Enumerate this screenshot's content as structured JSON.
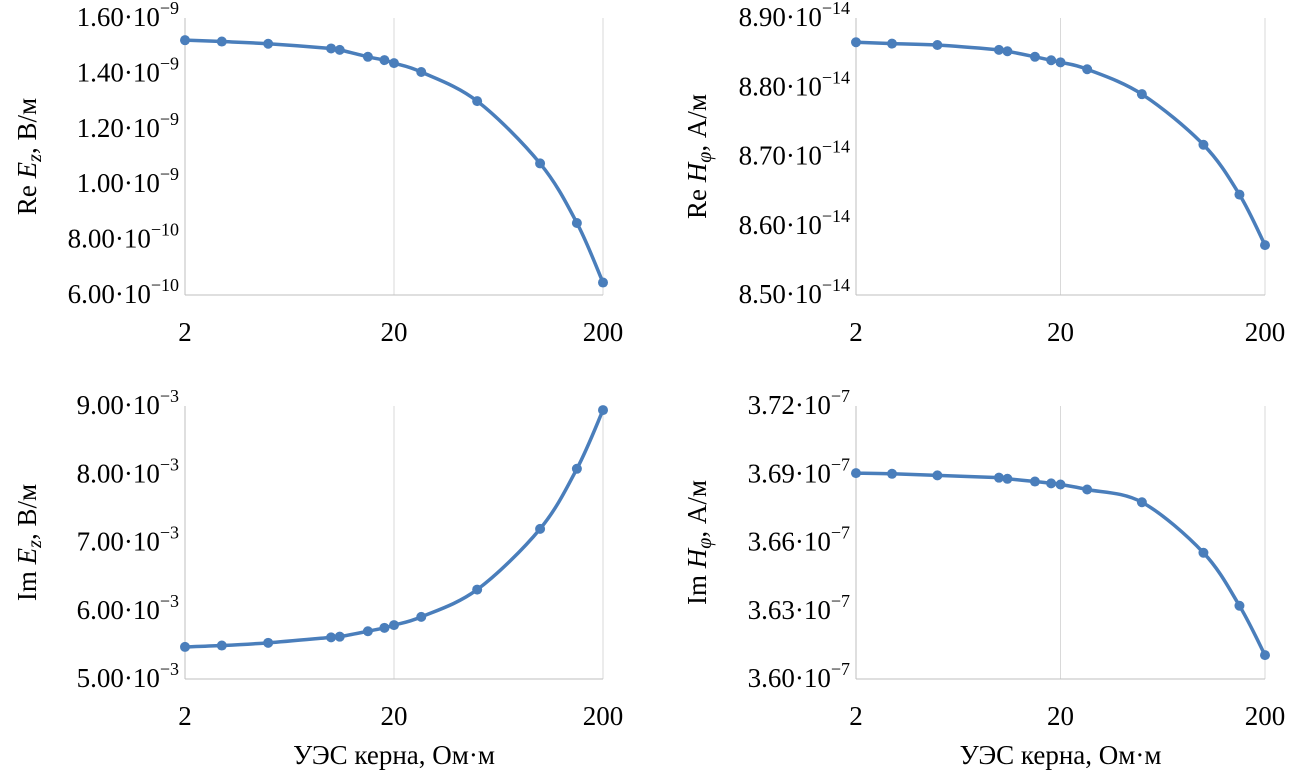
{
  "chart_data": [
    {
      "type": "line",
      "id": "re-ez",
      "ylabel": {
        "prefix": "Re ",
        "var": "Ez",
        "unit": ", В/м"
      },
      "xlabel": "",
      "x_scale": "log",
      "xlim": [
        2,
        200
      ],
      "ylim": [
        6e-10,
        1.6e-09
      ],
      "yticks": [
        {
          "value": 6e-10,
          "mantissa": "6.00",
          "exponent": "−10"
        },
        {
          "value": 8e-10,
          "mantissa": "8.00",
          "exponent": "−10"
        },
        {
          "value": 1e-09,
          "mantissa": "1.00",
          "exponent": "−9"
        },
        {
          "value": 1.2e-09,
          "mantissa": "1.20",
          "exponent": "−9"
        },
        {
          "value": 1.4e-09,
          "mantissa": "1.40",
          "exponent": "−9"
        },
        {
          "value": 1.6e-09,
          "mantissa": "1.60",
          "exponent": "−9"
        }
      ],
      "xticks": [
        {
          "value": 2,
          "label": "2"
        },
        {
          "value": 20,
          "label": "20"
        },
        {
          "value": 200,
          "label": "200"
        }
      ],
      "grid": "vertical",
      "color": "#4a7ebb",
      "x": [
        2,
        3,
        5,
        10,
        11,
        15,
        18,
        20,
        27,
        50,
        100,
        150,
        200
      ],
      "y": [
        1.52e-09,
        1.515e-09,
        1.507e-09,
        1.49e-09,
        1.485e-09,
        1.46e-09,
        1.448e-09,
        1.437e-09,
        1.405e-09,
        1.3e-09,
        1.075e-09,
        8.6e-10,
        6.45e-10
      ]
    },
    {
      "type": "line",
      "id": "re-hphi",
      "ylabel": {
        "prefix": "Re ",
        "var": "Hφ",
        "unit": ", А/м"
      },
      "xlabel": "",
      "x_scale": "log",
      "xlim": [
        2,
        200
      ],
      "ylim": [
        8.5e-14,
        8.9e-14
      ],
      "yticks": [
        {
          "value": 8.5e-14,
          "mantissa": "8.50",
          "exponent": "−14"
        },
        {
          "value": 8.6e-14,
          "mantissa": "8.60",
          "exponent": "−14"
        },
        {
          "value": 8.7e-14,
          "mantissa": "8.70",
          "exponent": "−14"
        },
        {
          "value": 8.8e-14,
          "mantissa": "8.80",
          "exponent": "−14"
        },
        {
          "value": 8.9e-14,
          "mantissa": "8.90",
          "exponent": "−14"
        }
      ],
      "xticks": [
        {
          "value": 2,
          "label": "2"
        },
        {
          "value": 20,
          "label": "20"
        },
        {
          "value": 200,
          "label": "200"
        }
      ],
      "grid": "vertical",
      "color": "#4a7ebb",
      "x": [
        2,
        3,
        5,
        10,
        11,
        15,
        18,
        20,
        27,
        50,
        100,
        150,
        200
      ],
      "y": [
        8.865e-14,
        8.863e-14,
        8.861e-14,
        8.854e-14,
        8.852e-14,
        8.844e-14,
        8.839e-14,
        8.836e-14,
        8.826e-14,
        8.79e-14,
        8.717e-14,
        8.645e-14,
        8.572e-14
      ]
    },
    {
      "type": "line",
      "id": "im-ez",
      "ylabel": {
        "prefix": "Im ",
        "var": "Ez",
        "unit": ", В/м"
      },
      "xlabel": "УЭС керна, Ом·м",
      "x_scale": "log",
      "xlim": [
        2,
        200
      ],
      "ylim": [
        0.005,
        0.009
      ],
      "yticks": [
        {
          "value": 0.005,
          "mantissa": "5.00",
          "exponent": "−3"
        },
        {
          "value": 0.006,
          "mantissa": "6.00",
          "exponent": "−3"
        },
        {
          "value": 0.007,
          "mantissa": "7.00",
          "exponent": "−3"
        },
        {
          "value": 0.008,
          "mantissa": "8.00",
          "exponent": "−3"
        },
        {
          "value": 0.009,
          "mantissa": "9.00",
          "exponent": "−3"
        }
      ],
      "xticks": [
        {
          "value": 2,
          "label": "2"
        },
        {
          "value": 20,
          "label": "20"
        },
        {
          "value": 200,
          "label": "200"
        }
      ],
      "grid": "vertical",
      "color": "#4a7ebb",
      "x": [
        2,
        3,
        5,
        10,
        11,
        15,
        18,
        20,
        27,
        50,
        100,
        150,
        200
      ],
      "y": [
        0.00547,
        0.00549,
        0.00553,
        0.00561,
        0.00562,
        0.0057,
        0.00575,
        0.00579,
        0.00591,
        0.00631,
        0.0072,
        0.00808,
        0.00894
      ]
    },
    {
      "type": "line",
      "id": "im-hphi",
      "ylabel": {
        "prefix": "Im ",
        "var": "Hφ",
        "unit": ", А/м"
      },
      "xlabel": "УЭС керна, Ом·м",
      "x_scale": "log",
      "xlim": [
        2,
        200
      ],
      "ylim": [
        3.6e-07,
        3.72e-07
      ],
      "yticks": [
        {
          "value": 3.6e-07,
          "mantissa": "3.60",
          "exponent": "−7"
        },
        {
          "value": 3.63e-07,
          "mantissa": "3.63",
          "exponent": "−7"
        },
        {
          "value": 3.66e-07,
          "mantissa": "3.66",
          "exponent": "−7"
        },
        {
          "value": 3.69e-07,
          "mantissa": "3.69",
          "exponent": "−7"
        },
        {
          "value": 3.72e-07,
          "mantissa": "3.72",
          "exponent": "−7"
        }
      ],
      "xticks": [
        {
          "value": 2,
          "label": "2"
        },
        {
          "value": 20,
          "label": "20"
        },
        {
          "value": 200,
          "label": "200"
        }
      ],
      "grid": "vertical",
      "color": "#4a7ebb",
      "x": [
        2,
        3,
        5,
        10,
        11,
        15,
        18,
        20,
        27,
        50,
        100,
        150,
        200
      ],
      "y": [
        3.6905e-07,
        3.6902e-07,
        3.6895e-07,
        3.6885e-07,
        3.688e-07,
        3.6868e-07,
        3.686e-07,
        3.6855e-07,
        3.6833e-07,
        3.6777e-07,
        3.6555e-07,
        3.6322e-07,
        3.6105e-07
      ]
    }
  ]
}
